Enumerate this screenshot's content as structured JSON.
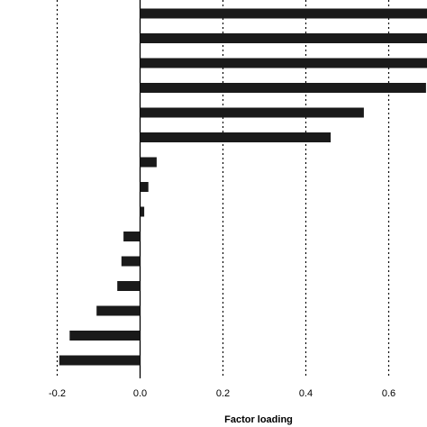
{
  "chart_data": {
    "type": "bar",
    "orientation": "horizontal",
    "title": "",
    "xlabel": "Factor loading",
    "ylabel": "",
    "xlim": [
      -0.2,
      0.7
    ],
    "xticks": [
      -0.2,
      0.0,
      0.2,
      0.4,
      0.6
    ],
    "xtick_labels": [
      "-0.2",
      "0.0",
      "0.2",
      "0.4",
      "0.6"
    ],
    "grid": "vertical dotted lines at ticks",
    "values": [
      0.7,
      0.7,
      0.7,
      0.69,
      0.54,
      0.46,
      0.04,
      0.02,
      0.01,
      -0.04,
      -0.045,
      -0.055,
      -0.105,
      -0.17,
      -0.195
    ],
    "bar_color": "#1a1a1a"
  }
}
